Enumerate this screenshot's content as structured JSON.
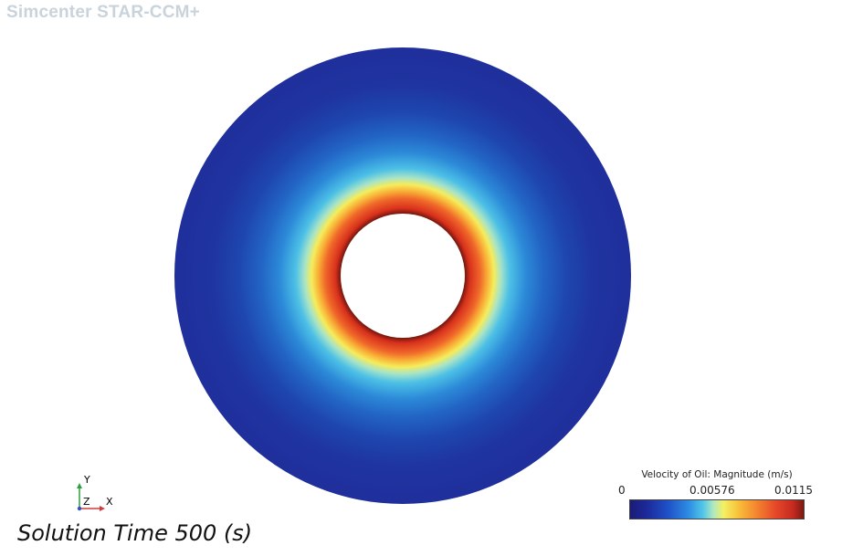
{
  "app": {
    "brand": "Simcenter STAR-CCM+"
  },
  "scene": {
    "solution_time_label": "Solution Time 500 (s)",
    "field": "Velocity of Oil: Magnitude",
    "colors": {
      "outer_field": "#1f2f9c",
      "peak": "#e03a20",
      "hole": "#ffffff"
    }
  },
  "axes": {
    "y_label": "Y",
    "z_label": "Z",
    "x_label": "X",
    "colors": {
      "x": "#d23c3c",
      "y": "#2e9e3e",
      "z": "#2f4fd0"
    }
  },
  "legend": {
    "title": "Velocity of Oil: Magnitude (m/s)",
    "min_label": "0",
    "mid_label": "0.00576",
    "max_label": "0.0115"
  }
}
